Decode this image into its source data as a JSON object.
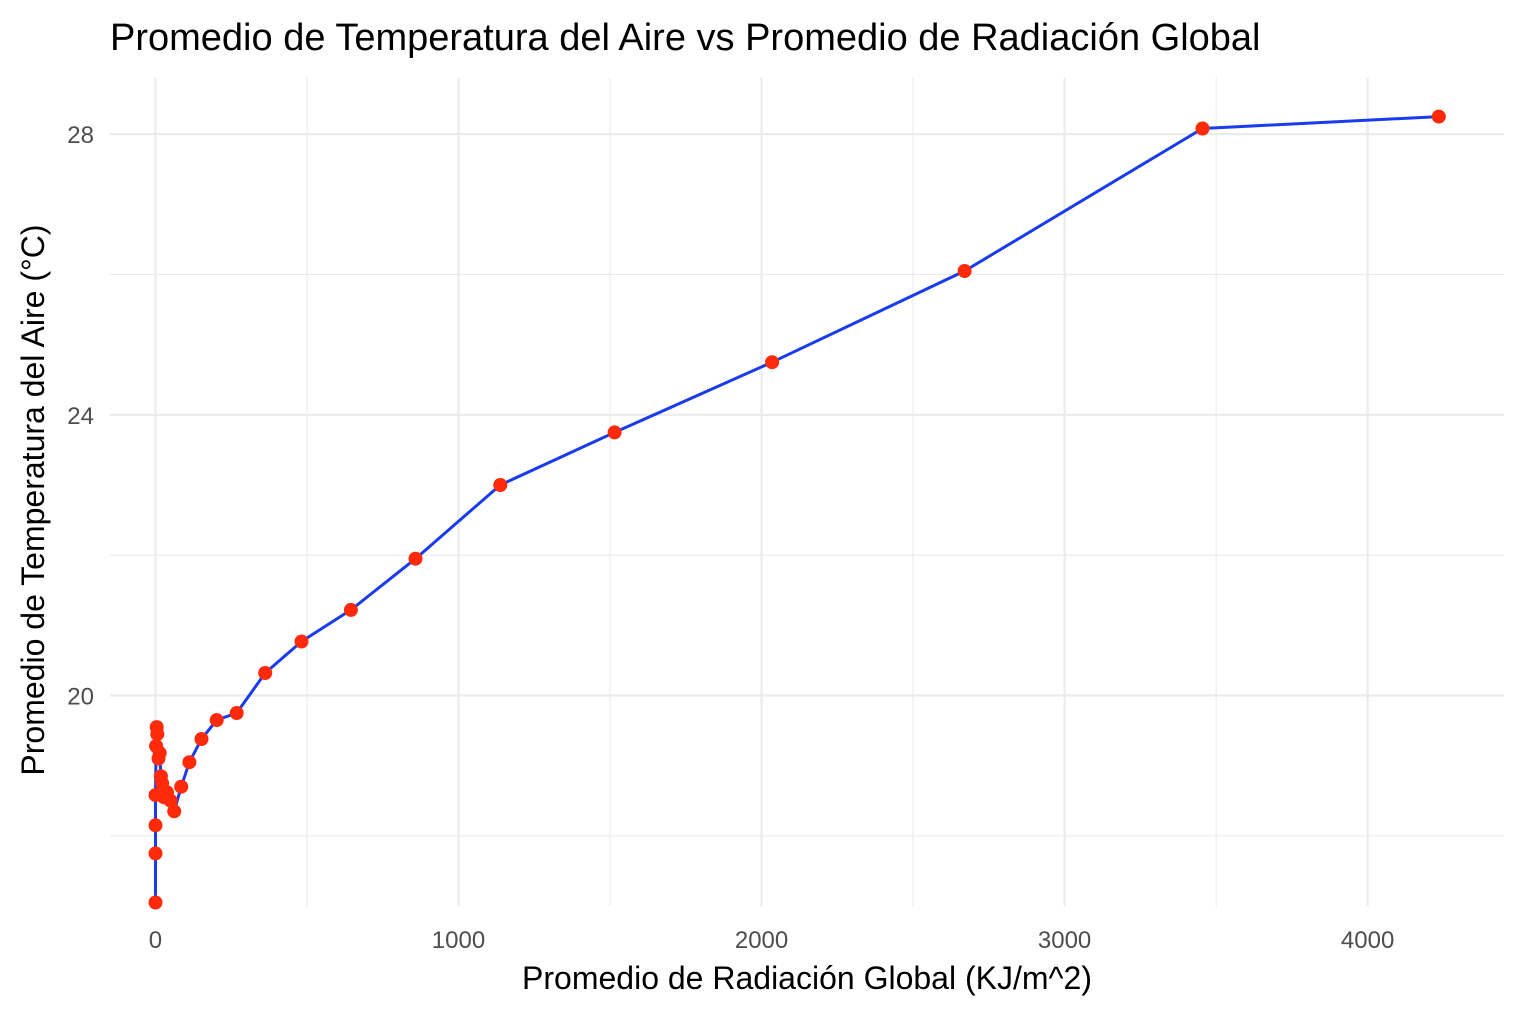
{
  "chart_data": {
    "type": "line",
    "title": "Promedio de Temperatura del Aire vs Promedio de Radiación Global",
    "xlabel": "Promedio de Radiación Global (KJ/m^2)",
    "ylabel": "Promedio de Temperatura del Aire (°C)",
    "xlim": [
      -150,
      4450
    ],
    "ylim": [
      17.0,
      28.8
    ],
    "x_ticks": [
      0,
      1000,
      2000,
      3000,
      4000
    ],
    "x_tick_labels": [
      "0",
      "1000",
      "2000",
      "3000",
      "4000"
    ],
    "x_minor_ticks": [
      500,
      1500,
      2500,
      3500
    ],
    "y_ticks": [
      20,
      24,
      28
    ],
    "y_tick_labels": [
      "20",
      "24",
      "28"
    ],
    "y_minor_ticks": [
      18,
      22,
      26
    ],
    "grid": true,
    "line_color": "#1a3cf0",
    "point_color": "#ff2a0a",
    "series": [
      {
        "points": [
          [
            0,
            17.05
          ],
          [
            0,
            17.75
          ],
          [
            0,
            18.15
          ],
          [
            0,
            18.58
          ],
          [
            2,
            19.28
          ],
          [
            4,
            19.55
          ],
          [
            6,
            19.45
          ],
          [
            10,
            19.1
          ],
          [
            14,
            19.18
          ],
          [
            18,
            18.85
          ],
          [
            22,
            18.75
          ],
          [
            28,
            18.55
          ],
          [
            38,
            18.62
          ],
          [
            50,
            18.5
          ],
          [
            62,
            18.35
          ],
          [
            85,
            18.7
          ],
          [
            112,
            19.05
          ],
          [
            152,
            19.38
          ],
          [
            202,
            19.65
          ],
          [
            268,
            19.75
          ],
          [
            362,
            20.32
          ],
          [
            482,
            20.77
          ],
          [
            645,
            21.22
          ],
          [
            858,
            21.95
          ],
          [
            1138,
            23.0
          ],
          [
            1515,
            23.75
          ],
          [
            2035,
            24.75
          ],
          [
            2670,
            26.05
          ],
          [
            3455,
            28.08
          ],
          [
            4235,
            28.25
          ]
        ]
      }
    ]
  }
}
